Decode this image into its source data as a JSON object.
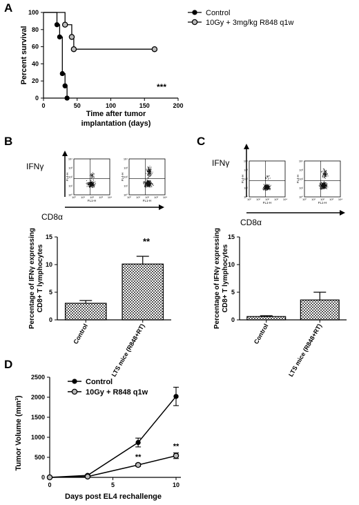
{
  "chart_data": [
    {
      "panel": "A",
      "type": "line",
      "ylabel": "Percent survival",
      "xlabel_lines": [
        "Time after tumor",
        "implantation (days)"
      ],
      "xlim": [
        0,
        200
      ],
      "ylim": [
        0,
        100
      ],
      "xticks": [
        0,
        50,
        100,
        150,
        200
      ],
      "yticks": [
        0,
        20,
        40,
        60,
        80,
        100
      ],
      "legend_position": "top-right",
      "series": [
        {
          "name": "Control",
          "marker": "filled-circle",
          "x": [
            0,
            20,
            24,
            28,
            32,
            35
          ],
          "y": [
            100,
            85.7,
            71.4,
            28.6,
            14.3,
            0
          ]
        },
        {
          "name": "10Gy + 3mg/kg R848 q1w",
          "marker": "open-circle",
          "x": [
            0,
            32,
            42,
            45,
            165
          ],
          "y": [
            100,
            85.7,
            71.4,
            57.1,
            57.1
          ]
        }
      ],
      "annotation": "***"
    },
    {
      "panel": "B",
      "type": "bar",
      "flow_ylabel": "IFNγ",
      "flow_xlabel": "CD8α",
      "ylabel_lines": [
        "Percentage of IFNγ expressing",
        "CD8+ T lymphocytes"
      ],
      "categories": [
        "Control",
        "LTS mice (R848+RT)"
      ],
      "values": [
        3.0,
        10.1
      ],
      "errors": [
        0.5,
        1.4
      ],
      "ylim": [
        0,
        15
      ],
      "yticks": [
        0,
        5,
        10,
        15
      ],
      "annotation": "**"
    },
    {
      "panel": "C",
      "type": "bar",
      "flow_ylabel": "IFNγ",
      "flow_xlabel": "CD8α",
      "ylabel_lines": [
        "Percentage of IFNγ expressing",
        "CD8+ T lymphocytes"
      ],
      "categories": [
        "Control",
        "LTS mice (R848+RT)"
      ],
      "values": [
        0.6,
        3.6
      ],
      "errors": [
        0.15,
        1.4
      ],
      "ylim": [
        0,
        15
      ],
      "yticks": [
        0,
        5,
        10,
        15
      ]
    },
    {
      "panel": "D",
      "type": "line",
      "ylabel": "Tumor Volume (mm³)",
      "xlabel": "Days post EL4 rechallenge",
      "xlim": [
        0,
        10
      ],
      "ylim": [
        0,
        2500
      ],
      "xticks": [
        0,
        5,
        10
      ],
      "yticks": [
        0,
        500,
        1000,
        1500,
        2000,
        2500
      ],
      "legend_position": "top-left",
      "series": [
        {
          "name": "Control",
          "marker": "filled-circle",
          "x": [
            0,
            3,
            7,
            10
          ],
          "y": [
            0,
            50,
            870,
            2020
          ],
          "err": [
            0,
            15,
            110,
            230
          ]
        },
        {
          "name": "10Gy + R848 q1w",
          "marker": "open-circle",
          "x": [
            0,
            3,
            7,
            10
          ],
          "y": [
            0,
            20,
            310,
            540
          ],
          "err": [
            0,
            10,
            35,
            70
          ]
        }
      ],
      "annotations": [
        {
          "x": 7,
          "text": "**"
        },
        {
          "x": 10,
          "text": "**"
        }
      ]
    }
  ],
  "panel_letters": [
    "A",
    "B",
    "C",
    "D"
  ],
  "flow": {
    "ticks": [
      "10⁰",
      "10¹",
      "10²",
      "10³",
      "10⁴"
    ],
    "fl4": "FL4-H",
    "fl1": "FL1-H"
  }
}
